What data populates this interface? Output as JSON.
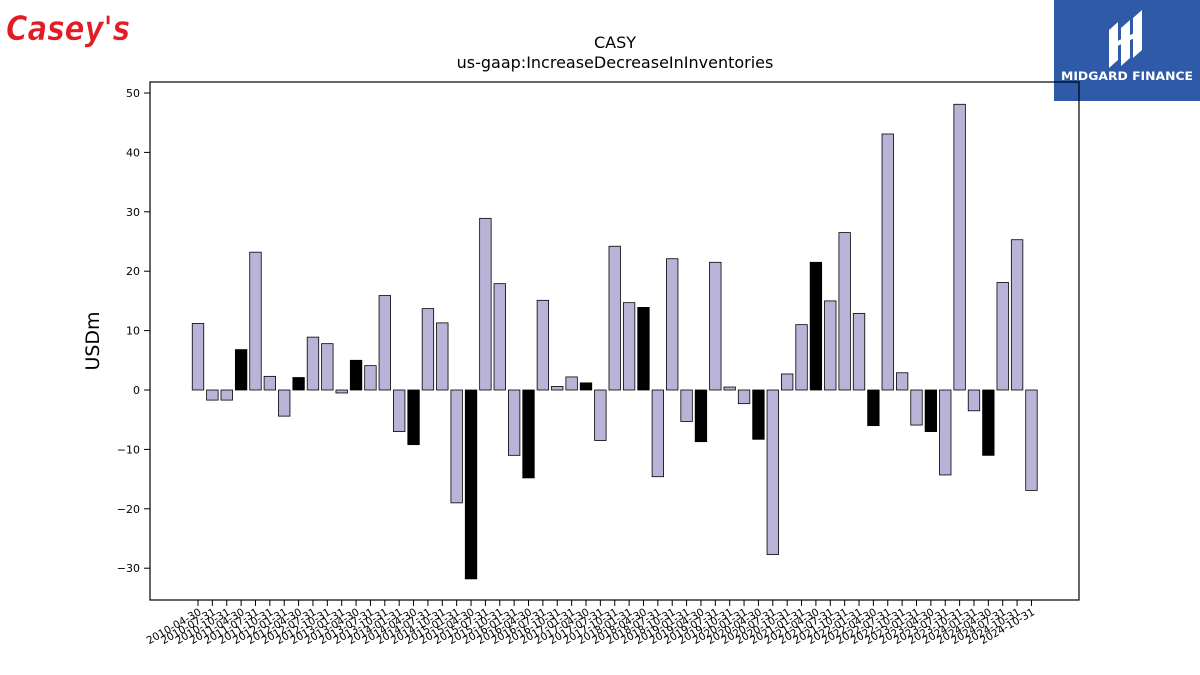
{
  "brand": {
    "left_logo_text": "Casey's",
    "right_logo_text": "MIDGARD FINANCE",
    "left_logo_color": "#e31b23",
    "right_logo_bg": "#2f5aa8"
  },
  "chart_data": {
    "type": "bar",
    "title": "CASY",
    "subtitle": "us-gaap:IncreaseDecreaseInInventories",
    "xlabel": "",
    "ylabel": "USDm",
    "ylim": [
      -35,
      52
    ],
    "yticks": [
      -30,
      -20,
      -10,
      0,
      10,
      20,
      30,
      40,
      50
    ],
    "grid": false,
    "colors": {
      "default": "#b8b4d8",
      "highlight": "#000000",
      "edge": "#000000"
    },
    "categories": [
      "2010-04-30",
      "2010-07-31",
      "2010-10-31",
      "2011-04-30",
      "2011-07-31",
      "2011-10-31",
      "2012-01-31",
      "2012-04-30",
      "2012-07-31",
      "2012-10-31",
      "2013-01-31",
      "2013-04-30",
      "2013-07-31",
      "2013-10-31",
      "2014-01-31",
      "2014-04-30",
      "2014-07-31",
      "2014-10-31",
      "2015-01-31",
      "2015-04-30",
      "2015-07-31",
      "2015-10-31",
      "2016-01-31",
      "2016-04-30",
      "2016-07-31",
      "2016-10-31",
      "2017-01-31",
      "2017-04-30",
      "2017-07-31",
      "2017-10-31",
      "2018-01-31",
      "2018-04-30",
      "2018-07-31",
      "2018-10-31",
      "2019-01-31",
      "2019-04-30",
      "2019-07-31",
      "2019-10-31",
      "2020-01-31",
      "2020-04-30",
      "2020-07-31",
      "2020-10-31",
      "2021-01-31",
      "2021-04-30",
      "2021-07-31",
      "2021-10-31",
      "2022-01-31",
      "2022-04-30",
      "2022-07-31",
      "2022-10-31",
      "2023-01-31",
      "2023-04-30",
      "2023-07-31",
      "2023-10-31",
      "2024-01-31",
      "2024-04-30",
      "2024-07-31",
      "2024-10-31",
      "2024-10-31"
    ],
    "tick_labels": [
      "2010-04-30",
      "2010-07-31",
      "2010-10-31",
      "2011-04-30",
      "2011-07-31",
      "2011-10-31",
      "2012-01-31",
      "2012-04-30",
      "2012-07-31",
      "2012-10-31",
      "2013-01-31",
      "2013-04-30",
      "2013-07-31",
      "2013-10-31",
      "2014-01-31",
      "2014-04-30",
      "2014-07-31",
      "2014-10-31",
      "2015-01-31",
      "2015-04-30",
      "2015-07-31",
      "2015-10-31",
      "2016-01-31",
      "2016-04-30",
      "2016-07-31",
      "2016-10-31",
      "2017-01-31",
      "2017-04-30",
      "2017-07-31",
      "2017-10-31",
      "2018-01-31",
      "2018-04-30",
      "2018-07-31",
      "2018-10-31",
      "2019-01-31",
      "2019-04-30",
      "2019-07-31",
      "2019-10-31",
      "2020-01-31",
      "2020-04-30",
      "2020-07-31",
      "2020-10-31",
      "2021-01-31",
      "2021-04-30",
      "2021-07-31",
      "2021-10-31",
      "2022-01-31",
      "2022-04-30",
      "2022-07-31",
      "2022-10-31",
      "2023-01-31",
      "2023-04-30",
      "2023-07-31",
      "2023-10-31",
      "2024-01-31",
      "2024-04-30",
      "2024-07-31",
      "2024-10-31",
      "2024-10-31"
    ],
    "values": [
      11.2,
      -1.7,
      -1.7,
      6.8,
      23.2,
      2.3,
      -4.4,
      2.1,
      8.9,
      7.8,
      -0.5,
      5.0,
      4.1,
      15.9,
      -7.0,
      -9.2,
      13.7,
      11.3,
      -19.0,
      -31.8,
      28.9,
      17.9,
      -11.0,
      -14.8,
      15.1,
      0.6,
      2.2,
      1.2,
      -8.5,
      24.2,
      14.7,
      13.9,
      -14.6,
      22.1,
      -5.3,
      -8.7,
      21.5,
      0.5,
      -2.3,
      -8.3,
      -27.7,
      2.7,
      11.0,
      21.5,
      15.0,
      26.5,
      12.9,
      -6.0,
      43.1,
      2.9,
      -5.9,
      -7.0,
      -14.3,
      48.1,
      -3.5,
      -11.0,
      18.1,
      25.3,
      -16.9
    ],
    "highlight": [
      false,
      false,
      false,
      true,
      false,
      false,
      false,
      true,
      false,
      false,
      false,
      true,
      false,
      false,
      false,
      true,
      false,
      false,
      false,
      true,
      false,
      false,
      false,
      true,
      false,
      false,
      false,
      true,
      false,
      false,
      false,
      true,
      false,
      false,
      false,
      true,
      false,
      false,
      false,
      true,
      false,
      false,
      false,
      true,
      false,
      false,
      false,
      true,
      false,
      false,
      false,
      true,
      false,
      false,
      false,
      true,
      false,
      false,
      false
    ]
  }
}
